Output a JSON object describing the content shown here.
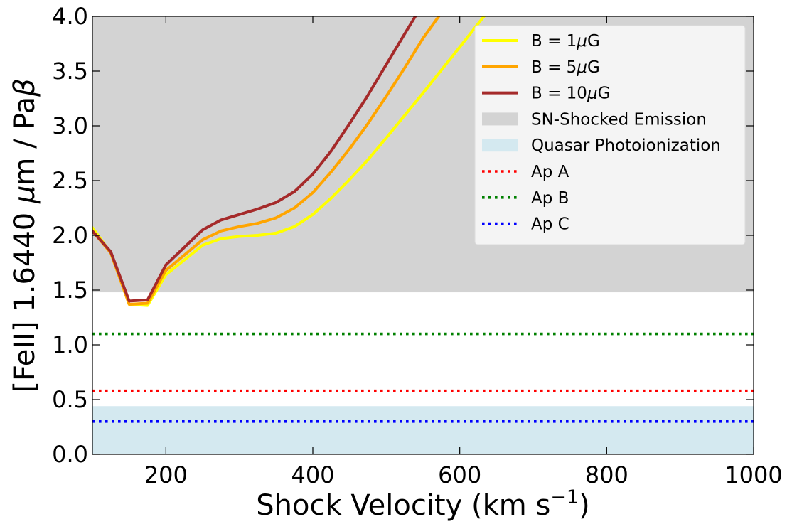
{
  "chart_data": {
    "type": "line",
    "title": "",
    "xlabel": "Shock Velocity (km s",
    "xlabel_unit_exponent": "−1",
    "xlabel_close": ")",
    "ylabel_prefix": "[FeII] 1.6440 ",
    "ylabel_mu": "μ",
    "ylabel_middle": "m / Pa",
    "ylabel_beta": "β",
    "xlim": [
      100,
      1000
    ],
    "ylim": [
      0.0,
      4.0
    ],
    "xticks": [
      200,
      400,
      600,
      800,
      1000
    ],
    "xtick_labels": [
      "200",
      "400",
      "600",
      "800",
      "1000"
    ],
    "yticks": [
      0.0,
      0.5,
      1.0,
      1.5,
      2.0,
      2.5,
      3.0,
      3.5,
      4.0
    ],
    "ytick_labels": [
      "0.0",
      "0.5",
      "1.0",
      "1.5",
      "2.0",
      "2.5",
      "3.0",
      "3.5",
      "4.0"
    ],
    "bands": [
      {
        "name": "SN-Shocked Emission",
        "y0": 1.48,
        "y1": 4.0,
        "color": "#d3d3d3"
      },
      {
        "name": "Quasar Photoionization",
        "y0": 0.0,
        "y1": 0.44,
        "color": "#d4e9f0"
      }
    ],
    "hlines": [
      {
        "name": "Ap A",
        "y": 0.58,
        "color": "#ff0000"
      },
      {
        "name": "Ap B",
        "y": 1.1,
        "color": "#008000"
      },
      {
        "name": "Ap C",
        "y": 0.3,
        "color": "#0000ff"
      }
    ],
    "series": [
      {
        "name": "B = 1μG",
        "legend_prefix": "B = 1",
        "legend_mu": "μ",
        "legend_suffix": "G",
        "color": "#ffff00",
        "x": [
          100,
          125,
          150,
          175,
          200,
          250,
          275,
          300,
          325,
          350,
          375,
          400,
          425,
          450,
          475,
          500,
          550,
          600,
          640
        ],
        "y": [
          2.07,
          1.84,
          1.37,
          1.36,
          1.64,
          1.91,
          1.97,
          1.99,
          2.0,
          2.02,
          2.08,
          2.19,
          2.34,
          2.51,
          2.69,
          2.89,
          3.3,
          3.72,
          4.06
        ]
      },
      {
        "name": "B = 5μG",
        "legend_prefix": "B = 5",
        "legend_mu": "μ",
        "legend_suffix": "G",
        "color": "#ffa500",
        "x": [
          100,
          125,
          150,
          175,
          200,
          250,
          275,
          300,
          325,
          350,
          375,
          400,
          425,
          450,
          475,
          500,
          525,
          550,
          580
        ],
        "y": [
          2.04,
          1.84,
          1.37,
          1.38,
          1.68,
          1.96,
          2.04,
          2.08,
          2.11,
          2.16,
          2.25,
          2.39,
          2.58,
          2.79,
          3.02,
          3.27,
          3.53,
          3.8,
          4.08
        ]
      },
      {
        "name": "B = 10μG",
        "legend_prefix": "B = 10",
        "legend_mu": "μ",
        "legend_suffix": "G",
        "color": "#a52a2a",
        "x": [
          100,
          125,
          150,
          175,
          200,
          250,
          275,
          300,
          325,
          350,
          375,
          400,
          425,
          450,
          475,
          500,
          525,
          545
        ],
        "y": [
          2.04,
          1.85,
          1.4,
          1.41,
          1.73,
          2.05,
          2.14,
          2.19,
          2.24,
          2.3,
          2.4,
          2.56,
          2.77,
          3.02,
          3.28,
          3.56,
          3.84,
          4.06
        ]
      }
    ],
    "legend": {
      "location": "upper right",
      "entries": [
        {
          "kind": "line",
          "series": 0
        },
        {
          "kind": "line",
          "series": 1
        },
        {
          "kind": "line",
          "series": 2
        },
        {
          "kind": "band",
          "band": 0
        },
        {
          "kind": "band",
          "band": 1
        },
        {
          "kind": "hline",
          "hline": 0
        },
        {
          "kind": "hline",
          "hline": 1
        },
        {
          "kind": "hline",
          "hline": 2
        }
      ]
    }
  }
}
